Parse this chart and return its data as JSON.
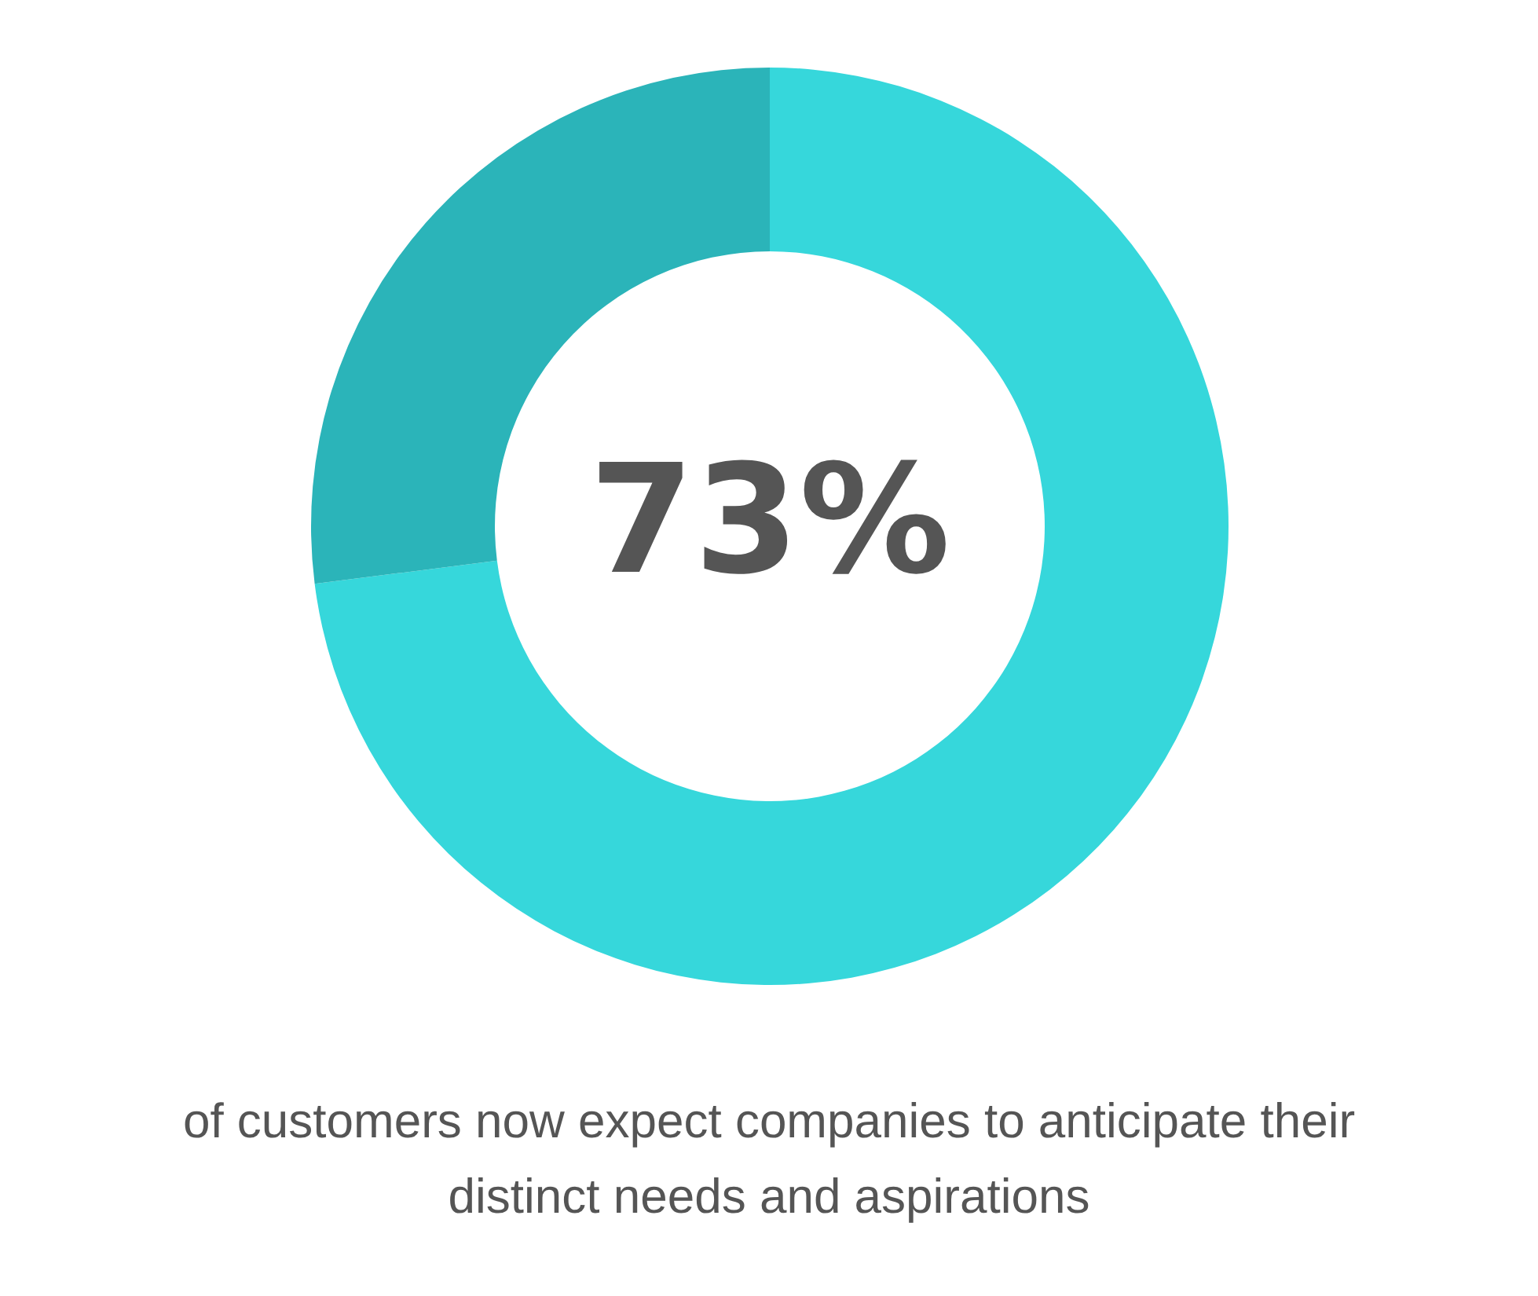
{
  "chart_data": {
    "type": "donut",
    "categories": [
      null,
      null
    ],
    "values": [
      73,
      27
    ],
    "colors": [
      "#36d7db",
      "#2bb4b9"
    ],
    "value_labels": [
      "73%",
      null
    ],
    "annotations": [
      "of customers now expect companies to anticipate their distinct needs and aspirations"
    ]
  }
}
